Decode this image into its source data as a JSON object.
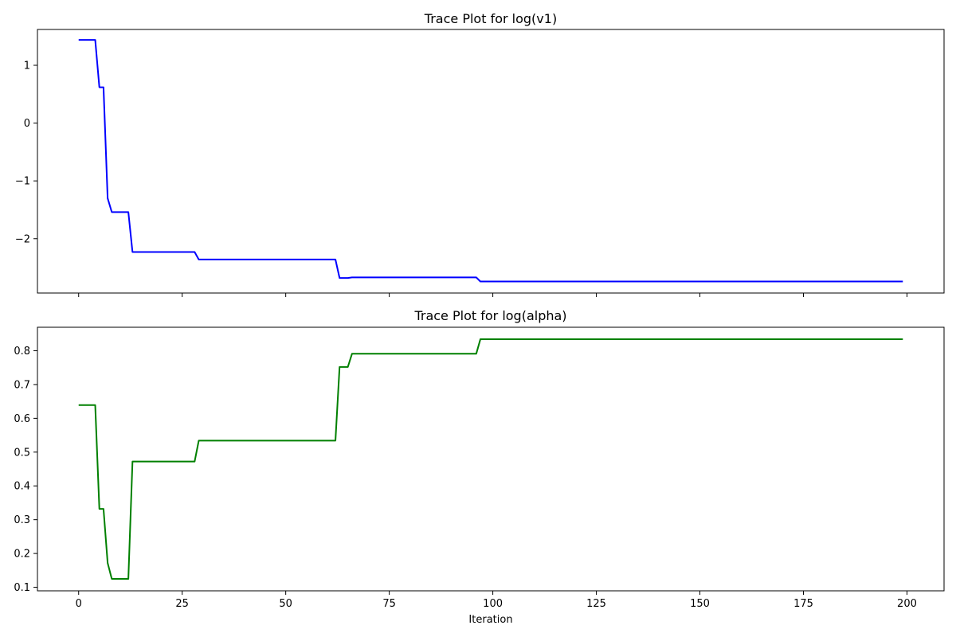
{
  "chart_data": [
    {
      "type": "line",
      "title": "Trace Plot for log(v1)",
      "xlabel": "",
      "ylabel": "",
      "xlim": [
        -9.95,
        208.95
      ],
      "ylim": [
        -2.94,
        1.62
      ],
      "xticks": [
        0,
        25,
        50,
        75,
        100,
        125,
        150,
        175,
        200
      ],
      "xtick_labels_visible": false,
      "yticks": [
        1,
        0,
        -1,
        -2
      ],
      "ytick_labels": [
        "1",
        "0",
        "−1",
        "−2"
      ],
      "grid": false,
      "series": [
        {
          "name": "log(v1)",
          "color": "#0000ff",
          "x": [
            0,
            4,
            5,
            6,
            7,
            8,
            12,
            13,
            28,
            29,
            62,
            63,
            65,
            66,
            96,
            97,
            199
          ],
          "y": [
            1.44,
            1.44,
            0.62,
            0.62,
            -1.3,
            -1.54,
            -1.54,
            -2.23,
            -2.23,
            -2.36,
            -2.36,
            -2.68,
            -2.68,
            -2.67,
            -2.67,
            -2.74,
            -2.74
          ]
        }
      ]
    },
    {
      "type": "line",
      "title": "Trace Plot for log(alpha)",
      "xlabel": "Iteration",
      "ylabel": "",
      "xlim": [
        -9.95,
        208.95
      ],
      "ylim": [
        0.0895,
        0.8695
      ],
      "xticks": [
        0,
        25,
        50,
        75,
        100,
        125,
        150,
        175,
        200
      ],
      "xtick_labels": [
        "0",
        "25",
        "50",
        "75",
        "100",
        "125",
        "150",
        "175",
        "200"
      ],
      "yticks": [
        0.1,
        0.2,
        0.3,
        0.4,
        0.5,
        0.6,
        0.7,
        0.8
      ],
      "ytick_labels": [
        "0.1",
        "0.2",
        "0.3",
        "0.4",
        "0.5",
        "0.6",
        "0.7",
        "0.8"
      ],
      "grid": false,
      "series": [
        {
          "name": "log(alpha)",
          "color": "#008000",
          "x": [
            0,
            4,
            5,
            6,
            7,
            8,
            12,
            13,
            28,
            29,
            62,
            63,
            65,
            66,
            96,
            97,
            199
          ],
          "y": [
            0.639,
            0.639,
            0.332,
            0.332,
            0.172,
            0.125,
            0.125,
            0.472,
            0.472,
            0.534,
            0.534,
            0.752,
            0.752,
            0.791,
            0.791,
            0.834,
            0.834
          ]
        }
      ]
    }
  ]
}
